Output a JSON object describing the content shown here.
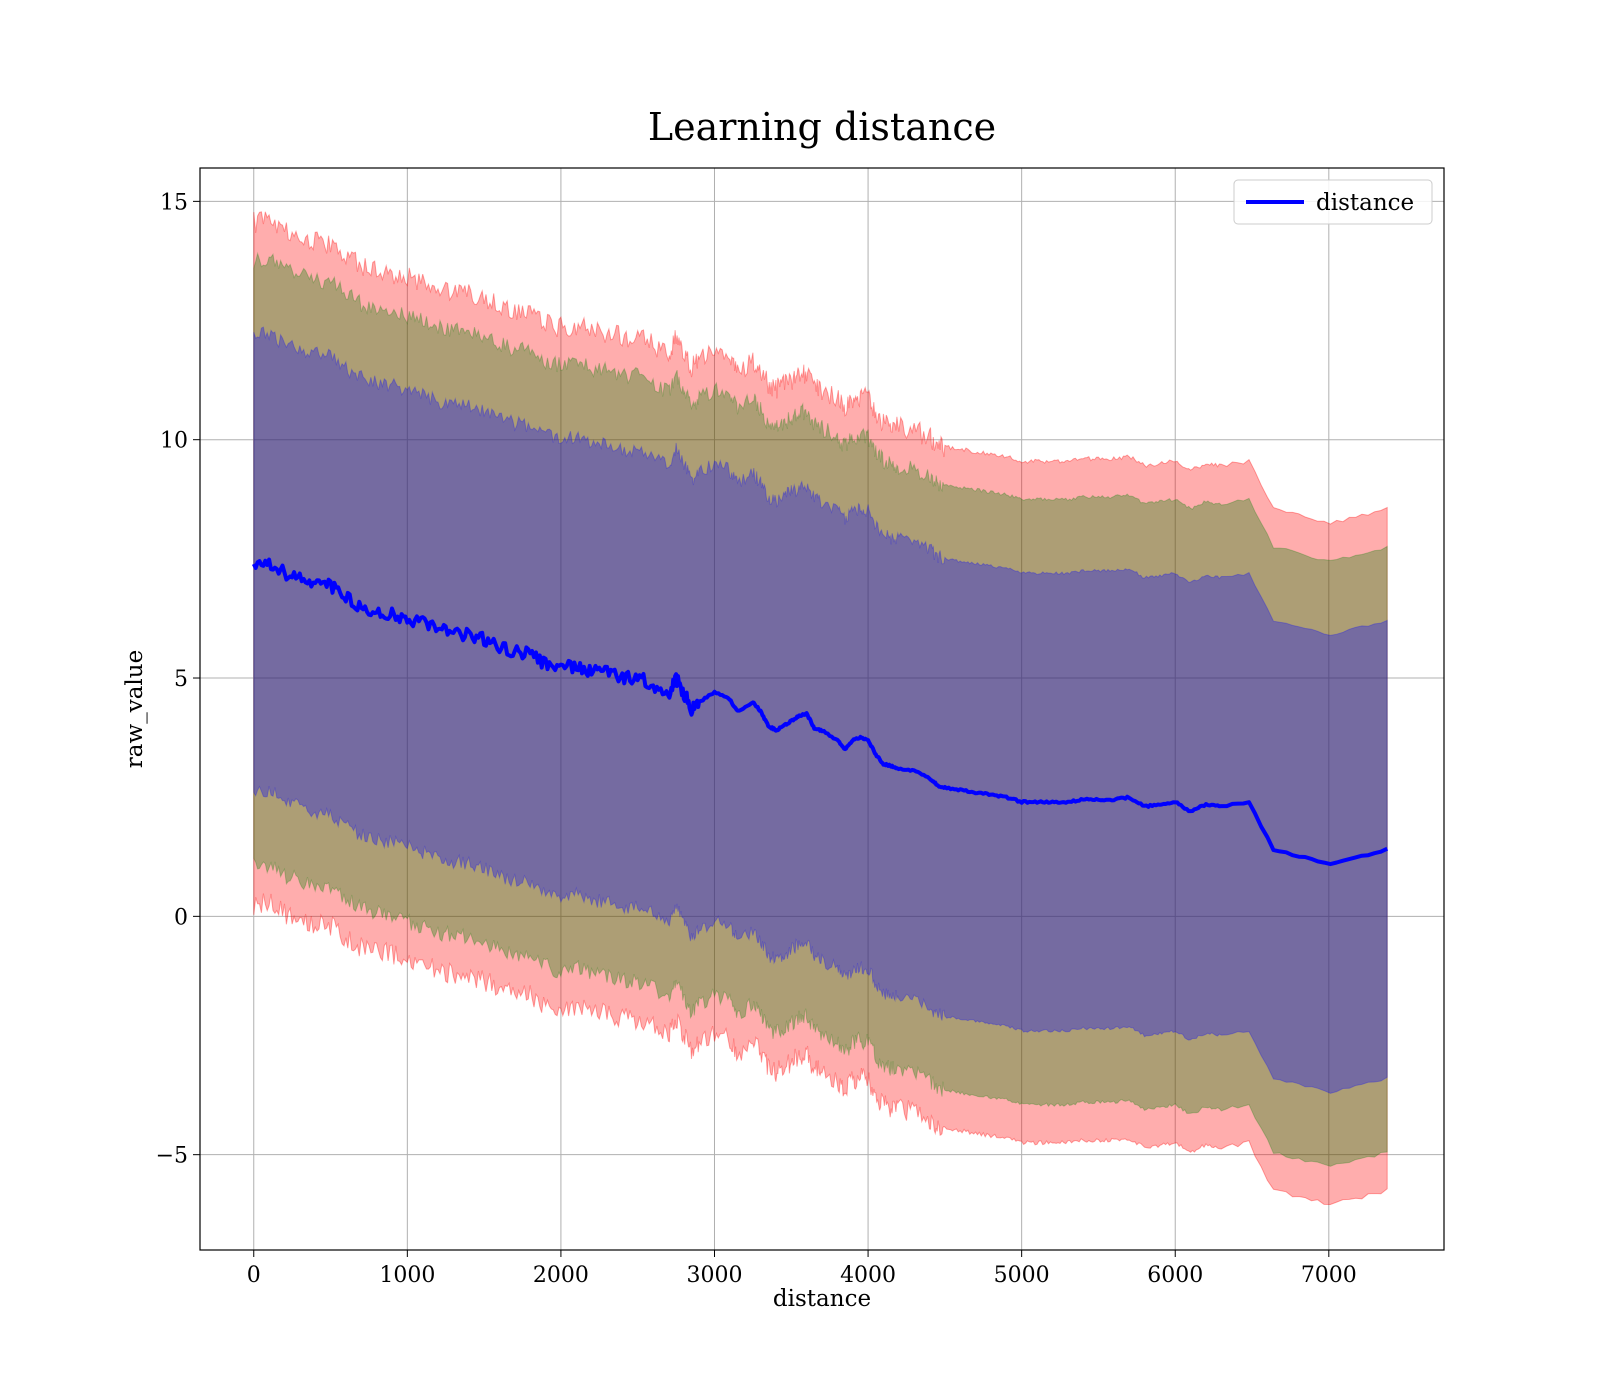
{
  "chart_data": {
    "type": "line",
    "title": "Learning distance",
    "xlabel": "distance",
    "ylabel": "raw_value",
    "xlim": [
      -350,
      7750
    ],
    "ylim": [
      -7.0,
      15.7
    ],
    "xticks": [
      0,
      1000,
      2000,
      3000,
      4000,
      5000,
      6000,
      7000
    ],
    "xtick_labels": [
      "0",
      "1000",
      "2000",
      "3000",
      "4000",
      "5000",
      "6000",
      "7000"
    ],
    "yticks": [
      -5,
      0,
      5,
      10,
      15
    ],
    "ytick_labels": [
      "−5",
      "0",
      "5",
      "10",
      "15"
    ],
    "grid": true,
    "legend": {
      "position": "top-right",
      "entries": [
        {
          "label": "distance",
          "color": "#0000ff"
        }
      ]
    },
    "colors": {
      "line": "#0000ff",
      "band": "#ff0000",
      "band_outer_opacity": 0.32,
      "band_mid_opacity": 0.32,
      "band_inner_opacity": 0.32,
      "band_mid_tint": "#008000",
      "band_inner_tint": "#0000ff"
    },
    "series": [
      {
        "name": "distance",
        "x": [
          0,
          100,
          200,
          300,
          400,
          500,
          600,
          700,
          800,
          900,
          1000,
          1100,
          1200,
          1300,
          1400,
          1500,
          1600,
          1700,
          1800,
          1900,
          2000,
          2100,
          2200,
          2300,
          2400,
          2500,
          2600,
          2700,
          2750,
          2800,
          2850,
          2900,
          3000,
          3100,
          3150,
          3250,
          3300,
          3350,
          3400,
          3450,
          3500,
          3550,
          3600,
          3650,
          3700,
          3800,
          3850,
          3900,
          3950,
          4000,
          4050,
          4100,
          4150,
          4200,
          4300,
          4400,
          4450,
          4500,
          4600,
          4700,
          4800,
          4900,
          5000,
          5100,
          5200,
          5300,
          5400,
          5500,
          5600,
          5700,
          5800,
          5900,
          6000,
          6100,
          6200,
          6300,
          6480,
          6640,
          7010,
          7380
        ],
        "y": [
          7.4,
          7.45,
          7.2,
          7.1,
          7.0,
          6.95,
          6.7,
          6.5,
          6.4,
          6.35,
          6.25,
          6.15,
          6.0,
          5.95,
          5.9,
          5.8,
          5.65,
          5.55,
          5.5,
          5.3,
          5.2,
          5.25,
          5.15,
          5.1,
          5.0,
          5.0,
          4.85,
          4.65,
          5.0,
          4.7,
          4.35,
          4.5,
          4.7,
          4.55,
          4.3,
          4.5,
          4.3,
          4.0,
          3.9,
          4.0,
          4.1,
          4.2,
          4.25,
          3.95,
          3.9,
          3.7,
          3.5,
          3.7,
          3.75,
          3.7,
          3.4,
          3.2,
          3.15,
          3.1,
          3.05,
          2.9,
          2.75,
          2.7,
          2.65,
          2.6,
          2.55,
          2.5,
          2.4,
          2.4,
          2.4,
          2.4,
          2.45,
          2.45,
          2.45,
          2.5,
          2.3,
          2.35,
          2.4,
          2.2,
          2.35,
          2.3,
          2.4,
          1.4,
          1.1,
          1.4
        ]
      }
    ],
    "bands": [
      {
        "name": "outer",
        "upper_offset": 7.15,
        "lower_offset": 7.15
      },
      {
        "name": "mid",
        "upper_offset": 6.35,
        "lower_offset": 6.35
      },
      {
        "name": "inner",
        "upper_offset": 4.8,
        "lower_offset": 4.8
      }
    ]
  }
}
